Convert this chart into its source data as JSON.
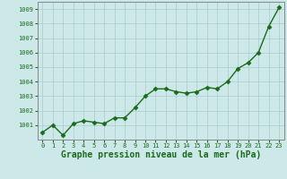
{
  "x": [
    0,
    1,
    2,
    3,
    4,
    5,
    6,
    7,
    8,
    9,
    10,
    11,
    12,
    13,
    14,
    15,
    16,
    17,
    18,
    19,
    20,
    21,
    22,
    23
  ],
  "y": [
    1000.5,
    1001.0,
    1000.3,
    1001.1,
    1001.3,
    1001.2,
    1001.1,
    1001.5,
    1001.5,
    1002.2,
    1003.0,
    1003.5,
    1003.5,
    1003.3,
    1003.2,
    1003.3,
    1003.6,
    1003.5,
    1004.0,
    1004.9,
    1005.3,
    1006.0,
    1007.8,
    1009.1
  ],
  "ylim": [
    1000.0,
    1009.5
  ],
  "yticks": [
    1001,
    1002,
    1003,
    1004,
    1005,
    1006,
    1007,
    1008,
    1009
  ],
  "ytick_labels": [
    "1001",
    "1002",
    "1003",
    "1004",
    "1005",
    "1006",
    "1007",
    "1008",
    "1009"
  ],
  "xticks": [
    0,
    1,
    2,
    3,
    4,
    5,
    6,
    7,
    8,
    9,
    10,
    11,
    12,
    13,
    14,
    15,
    16,
    17,
    18,
    19,
    20,
    21,
    22,
    23
  ],
  "xlabel": "Graphe pression niveau de la mer (hPa)",
  "line_color": "#1a6b1a",
  "marker": "D",
  "marker_size": 2.5,
  "linewidth": 1.0,
  "background_color": "#cce8e8",
  "grid_color": "#aacccc",
  "tick_label_fontsize": 5.0,
  "xlabel_fontsize": 7.0,
  "xlabel_fontweight": "bold",
  "spine_color": "#888888"
}
